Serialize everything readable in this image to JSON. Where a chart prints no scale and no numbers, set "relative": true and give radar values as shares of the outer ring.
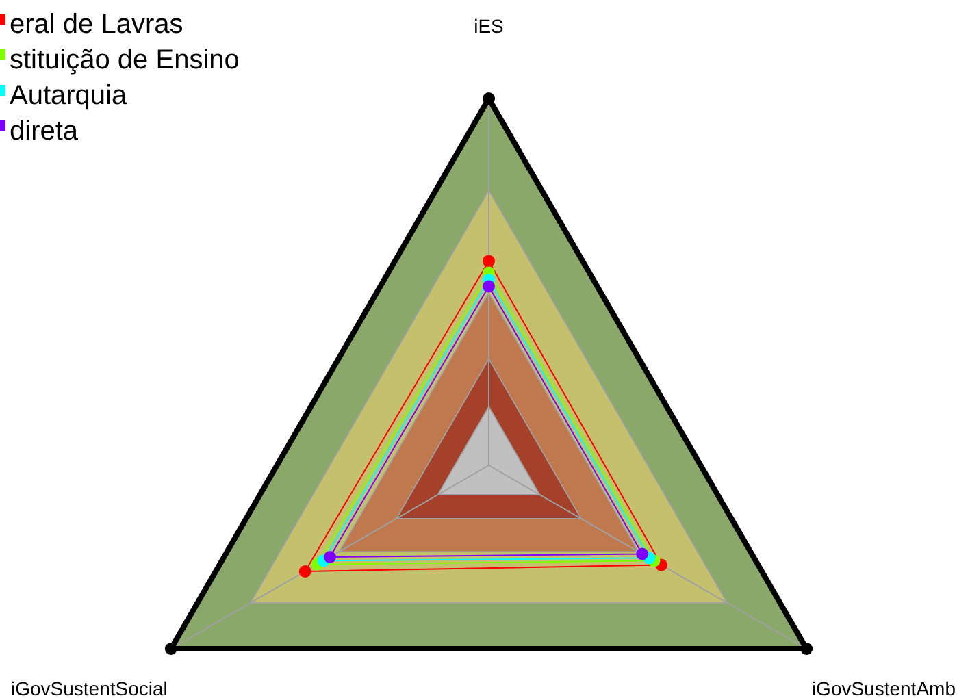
{
  "chart_data": {
    "type": "radar",
    "relative": true,
    "categories": [
      "iES",
      "iGovSustentAmb",
      "iGovSustentSocial"
    ],
    "series": [
      {
        "name": "eral de Lavras",
        "color": "#ff0000",
        "values": [
          0.557,
          0.543,
          0.578
        ]
      },
      {
        "name": "stituição de Ensino",
        "color": "#80ff00",
        "values": [
          0.525,
          0.52,
          0.54
        ]
      },
      {
        "name": "Autarquia",
        "color": "#00ffff",
        "values": [
          0.506,
          0.505,
          0.52
        ]
      },
      {
        "name": "direta",
        "color": "#8000ff",
        "values": [
          0.488,
          0.483,
          0.5
        ]
      }
    ],
    "marker": "circle",
    "legend": "top left"
  }
}
